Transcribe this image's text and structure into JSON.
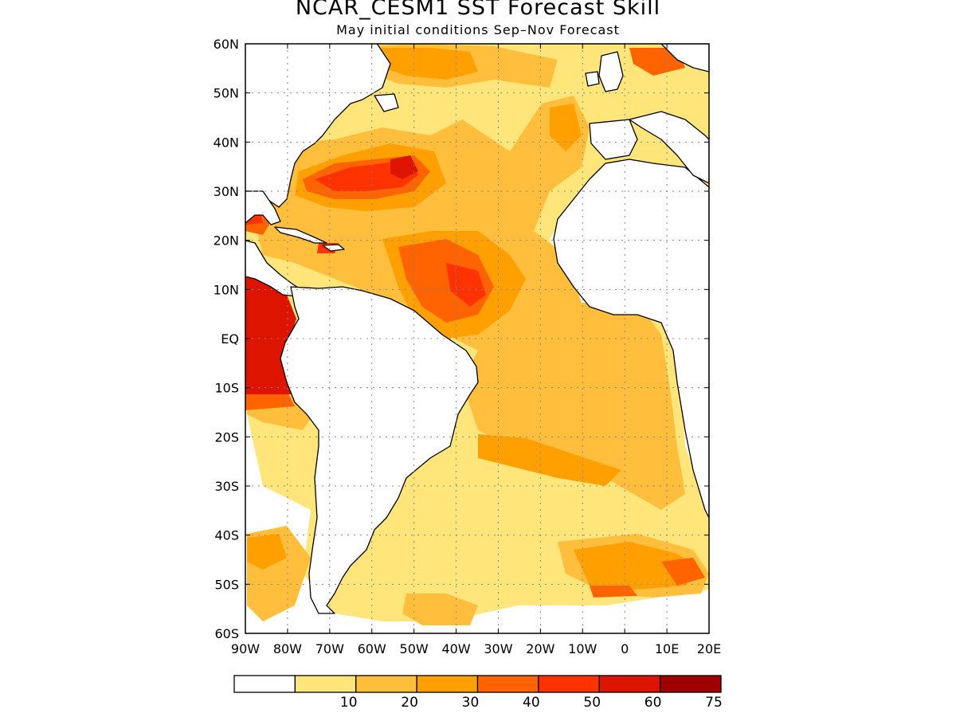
{
  "title": "NCAR_CESM1  SST Forecast Skill",
  "subtitle": "May initial conditions  Sep–Nov Forecast",
  "map": {
    "lon_range": [
      -90,
      20
    ],
    "lat_range": [
      -60,
      60
    ],
    "lat_ticks": [
      {
        "value": 60,
        "label": "60N"
      },
      {
        "value": 50,
        "label": "50N"
      },
      {
        "value": 40,
        "label": "40N"
      },
      {
        "value": 30,
        "label": "30N"
      },
      {
        "value": 20,
        "label": "20N"
      },
      {
        "value": 10,
        "label": "10N"
      },
      {
        "value": 0,
        "label": "EQ"
      },
      {
        "value": -10,
        "label": "10S"
      },
      {
        "value": -20,
        "label": "20S"
      },
      {
        "value": -30,
        "label": "30S"
      },
      {
        "value": -40,
        "label": "40S"
      },
      {
        "value": -50,
        "label": "50S"
      },
      {
        "value": -60,
        "label": "60S"
      }
    ],
    "lon_ticks": [
      {
        "value": -90,
        "label": "90W"
      },
      {
        "value": -80,
        "label": "80W"
      },
      {
        "value": -70,
        "label": "70W"
      },
      {
        "value": -60,
        "label": "60W"
      },
      {
        "value": -50,
        "label": "50W"
      },
      {
        "value": -40,
        "label": "40W"
      },
      {
        "value": -30,
        "label": "30W"
      },
      {
        "value": -20,
        "label": "20W"
      },
      {
        "value": -10,
        "label": "10W"
      },
      {
        "value": 0,
        "label": "0"
      },
      {
        "value": 10,
        "label": "10E"
      },
      {
        "value": 20,
        "label": "20E"
      }
    ],
    "gridlines": "dotted"
  },
  "colorbar": {
    "bins": [
      {
        "color": "#ffffff"
      },
      {
        "color": "#ffe57a",
        "label": "10"
      },
      {
        "color": "#ffbe3c",
        "label": "20"
      },
      {
        "color": "#ffa000",
        "label": "30"
      },
      {
        "color": "#ff6400",
        "label": "40"
      },
      {
        "color": "#ff3200",
        "label": "50"
      },
      {
        "color": "#dc1400",
        "label": "60"
      },
      {
        "color": "#a00000",
        "label": "75"
      }
    ]
  }
}
